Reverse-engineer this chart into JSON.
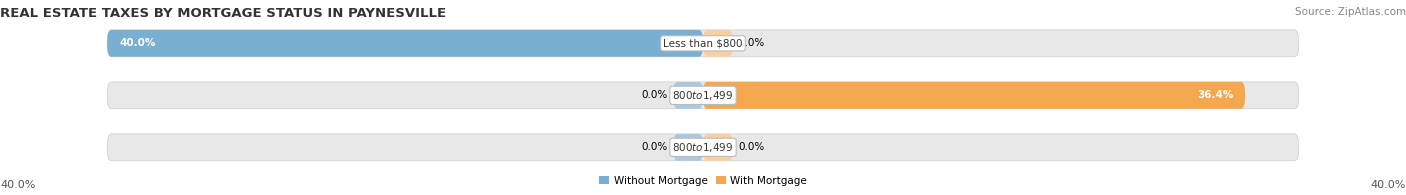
{
  "title": "REAL ESTATE TAXES BY MORTGAGE STATUS IN PAYNESVILLE",
  "source": "Source: ZipAtlas.com",
  "rows": [
    {
      "label": "Less than $800",
      "without_mortgage": 40.0,
      "with_mortgage": 0.0
    },
    {
      "label": "$800 to $1,499",
      "without_mortgage": 0.0,
      "with_mortgage": 36.4
    },
    {
      "label": "$800 to $1,499",
      "without_mortgage": 0.0,
      "with_mortgage": 0.0
    }
  ],
  "max_value": 40.0,
  "color_without": "#79afd1",
  "color_with": "#f5a74e",
  "color_without_small": "#a8c9e0",
  "color_with_small": "#f9cfa0",
  "bg_bar": "#e8e8e8",
  "legend_without": "Without Mortgage",
  "legend_with": "With Mortgage",
  "title_fontsize": 9.5,
  "source_fontsize": 7.5,
  "label_fontsize": 7.5,
  "value_fontsize": 7.5,
  "axis_label_fontsize": 8
}
